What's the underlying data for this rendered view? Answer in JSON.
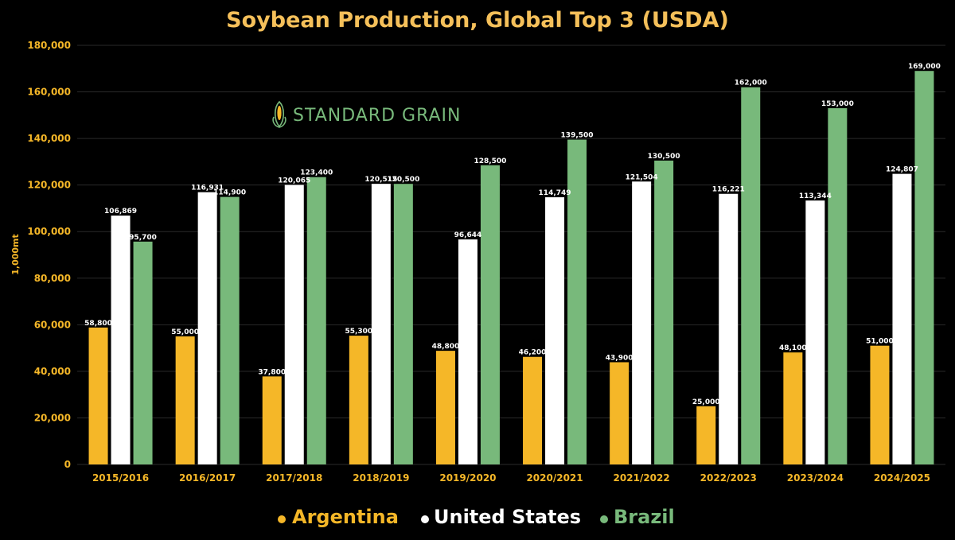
{
  "chart_data": {
    "type": "bar",
    "title": "Soybean Production, Global Top 3 (USDA)",
    "ylabel": "1,000mt",
    "xlabel": "",
    "ylim": [
      0,
      180000
    ],
    "yticks": [
      0,
      20000,
      40000,
      60000,
      80000,
      100000,
      120000,
      140000,
      160000,
      180000
    ],
    "grid": true,
    "legend_position": "bottom",
    "categories": [
      "2015/2016",
      "2016/2017",
      "2017/2018",
      "2018/2019",
      "2019/2020",
      "2020/2021",
      "2021/2022",
      "2022/2023",
      "2023/2024",
      "2024/2025"
    ],
    "series": [
      {
        "name": "Argentina",
        "color": "#f5b728",
        "values": [
          58800,
          55000,
          37800,
          55300,
          48800,
          46200,
          43900,
          25000,
          48100,
          51000
        ]
      },
      {
        "name": "United States",
        "color": "#ffffff",
        "values": [
          106869,
          116931,
          120065,
          120515,
          96644,
          114749,
          121504,
          116221,
          113344,
          124807
        ]
      },
      {
        "name": "Brazil",
        "color": "#78b97b",
        "values": [
          95700,
          114900,
          123400,
          120500,
          128500,
          139500,
          130500,
          162000,
          153000,
          169000
        ]
      }
    ],
    "logo_text": "STANDARD GRAIN",
    "colors": {
      "title": "#f5c05a",
      "axis_text": "#f5b728",
      "grid": "#2a2a2a",
      "background": "#000000",
      "logo_text": "#78b97b"
    }
  }
}
